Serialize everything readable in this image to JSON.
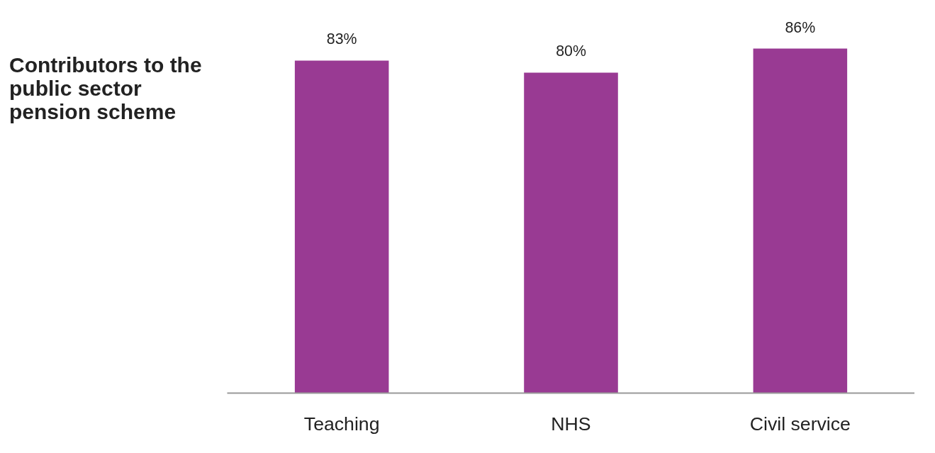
{
  "chart_data": {
    "type": "bar",
    "title": "Contributors to the public sector pension scheme",
    "categories": [
      "Teaching",
      "NHS",
      "Civil service"
    ],
    "values": [
      83,
      80,
      86
    ],
    "color": "#993a93",
    "data_labels": true,
    "value_labels": [
      "83%",
      "80%",
      "86%"
    ],
    "grid": false
  }
}
